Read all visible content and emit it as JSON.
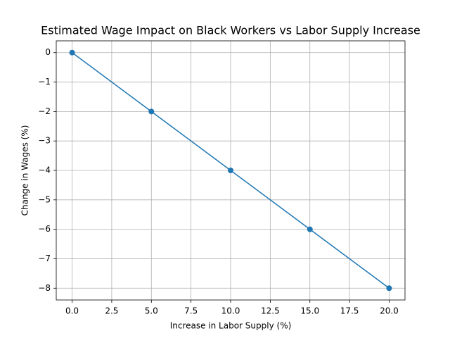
{
  "chart_data": {
    "type": "line",
    "title": "Estimated Wage Impact on Black Workers vs Labor Supply Increase",
    "x_label": "Increase in Labor Supply (%)",
    "y_label": "Change in Wages (%)",
    "x": [
      0,
      5,
      10,
      15,
      20
    ],
    "series": [
      {
        "name": "Change in Wages",
        "color": "#1f77b4",
        "values": [
          0,
          -2,
          -4,
          -6,
          -8
        ]
      }
    ],
    "xlim": [
      -1,
      21
    ],
    "ylim": [
      -8.4,
      0.4
    ],
    "xticks": [
      {
        "value": 0,
        "label": "0.0"
      },
      2.5,
      {
        "value": 5,
        "label": "5.0"
      },
      7.5,
      {
        "value": 10,
        "label": "10.0"
      },
      12.5,
      {
        "value": 15,
        "label": "15.0"
      },
      17.5,
      {
        "value": 20,
        "label": "20.0"
      }
    ],
    "yticks": [
      0,
      {
        "value": -1,
        "label": "−1"
      },
      {
        "value": -2,
        "label": "−2"
      },
      {
        "value": -3,
        "label": "−3"
      },
      {
        "value": -4,
        "label": "−4"
      },
      {
        "value": -5,
        "label": "−5"
      },
      {
        "value": -6,
        "label": "−6"
      },
      {
        "value": -7,
        "label": "−7"
      },
      {
        "value": -8,
        "label": "−8"
      }
    ],
    "grid": true,
    "markers": true
  }
}
